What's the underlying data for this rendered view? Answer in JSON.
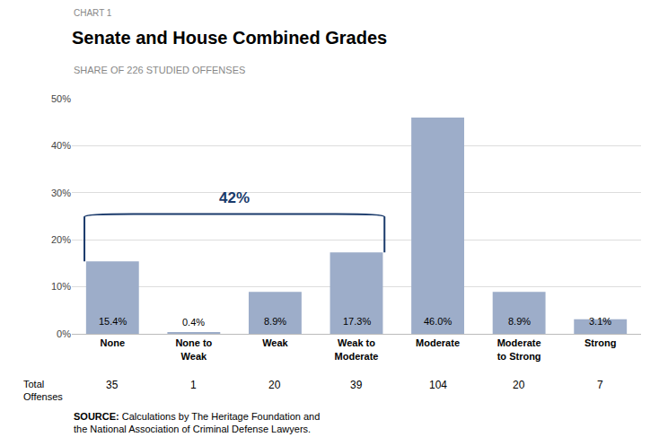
{
  "chart_data": {
    "type": "bar",
    "chart_label": "CHART 1",
    "title": "Senate and House Combined Grades",
    "subtitle": "SHARE OF 226 STUDIED OFFENSES",
    "categories": [
      "None",
      "None to\nWeak",
      "Weak",
      "Weak to\nModerate",
      "Moderate",
      "Moderate\nto Strong",
      "Strong"
    ],
    "values": [
      15.4,
      0.4,
      8.9,
      17.3,
      46.0,
      8.9,
      3.1
    ],
    "data_labels": true,
    "value_labels": [
      "15.4%",
      "0.4%",
      "8.9%",
      "17.3%",
      "46.0%",
      "8.9%",
      "3.1%"
    ],
    "color": "#9dadc9",
    "ylim": [
      0,
      50
    ],
    "yticks": [
      {
        "value": 0,
        "label": "0%"
      },
      {
        "value": 10,
        "label": "10%"
      },
      {
        "value": 20,
        "label": "20%"
      },
      {
        "value": 30,
        "label": "30%"
      },
      {
        "value": 40,
        "label": "40%"
      },
      {
        "value": 50,
        "label": "50%"
      }
    ],
    "grid": true,
    "bracket": {
      "label": "42%",
      "from": "None",
      "to": "Weak to\nModerate",
      "y": 25.5,
      "color": "#1a3a6b"
    },
    "total_offenses": {
      "label": "Total\nOffenses",
      "values": [
        35,
        1,
        20,
        39,
        104,
        20,
        7
      ]
    },
    "source": {
      "bold": "SOURCE:",
      "text": " Calculations by The Heritage Foundation and\nthe National Association of Criminal Defense Lawyers."
    }
  }
}
